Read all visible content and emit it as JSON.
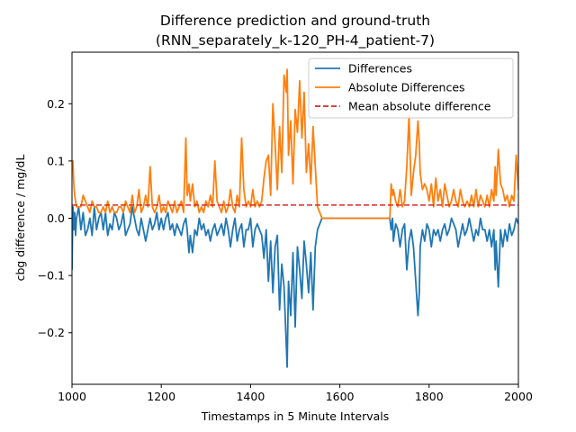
{
  "chart_data": {
    "type": "line",
    "title": "Difference prediction and ground-truth",
    "subtitle": "(RNN_separately_k-120_PH-4_patient-7)",
    "xlabel": "Timestamps in 5 Minute Intervals",
    "ylabel": "cbg difference / mg/dL",
    "xlim": [
      1000,
      2000
    ],
    "ylim": [
      -0.29,
      0.29
    ],
    "x_ticks": [
      1000,
      1200,
      1400,
      1600,
      1800,
      2000
    ],
    "x_tick_labels": [
      "1000",
      "1200",
      "1400",
      "1600",
      "1800",
      "2000"
    ],
    "y_ticks": [
      -0.2,
      -0.1,
      0.0,
      0.1,
      0.2
    ],
    "y_tick_labels": [
      "−0.2",
      "−0.1",
      "0.0",
      "0.1",
      "0.2"
    ],
    "grid": false,
    "legend_position": "upper right",
    "mean_absolute_difference": 0.023,
    "series": [
      {
        "name": "Differences",
        "color": "#1f77b4",
        "style": "solid",
        "x": [
          1000,
          1002,
          1004,
          1006,
          1008,
          1010,
          1015,
          1020,
          1025,
          1030,
          1035,
          1040,
          1045,
          1050,
          1055,
          1060,
          1065,
          1070,
          1075,
          1080,
          1085,
          1090,
          1095,
          1100,
          1105,
          1110,
          1115,
          1120,
          1125,
          1130,
          1135,
          1140,
          1145,
          1150,
          1155,
          1160,
          1165,
          1170,
          1175,
          1180,
          1185,
          1190,
          1195,
          1200,
          1205,
          1210,
          1215,
          1220,
          1225,
          1230,
          1235,
          1240,
          1245,
          1250,
          1255,
          1258,
          1262,
          1265,
          1270,
          1275,
          1280,
          1285,
          1290,
          1295,
          1300,
          1305,
          1310,
          1315,
          1320,
          1325,
          1330,
          1335,
          1340,
          1345,
          1350,
          1355,
          1360,
          1365,
          1370,
          1375,
          1380,
          1385,
          1390,
          1395,
          1400,
          1405,
          1410,
          1415,
          1420,
          1425,
          1430,
          1435,
          1440,
          1445,
          1450,
          1455,
          1460,
          1465,
          1470,
          1475,
          1480,
          1482,
          1485,
          1490,
          1495,
          1500,
          1505,
          1510,
          1515,
          1520,
          1525,
          1530,
          1535,
          1540,
          1545,
          1550,
          1560,
          1580,
          1600,
          1620,
          1640,
          1660,
          1680,
          1700,
          1712,
          1715,
          1718,
          1720,
          1725,
          1730,
          1735,
          1740,
          1745,
          1750,
          1755,
          1760,
          1765,
          1770,
          1775,
          1778,
          1780,
          1785,
          1790,
          1795,
          1800,
          1805,
          1810,
          1815,
          1820,
          1825,
          1830,
          1835,
          1840,
          1845,
          1850,
          1855,
          1860,
          1865,
          1870,
          1875,
          1880,
          1885,
          1890,
          1895,
          1900,
          1905,
          1910,
          1915,
          1920,
          1925,
          1930,
          1935,
          1940,
          1945,
          1948,
          1950,
          1955,
          1960,
          1965,
          1970,
          1975,
          1980,
          1985,
          1990,
          1995,
          2000
        ],
        "values": [
          -0.09,
          0.02,
          -0.02,
          0.01,
          -0.03,
          0.0,
          0.02,
          -0.02,
          0.01,
          -0.03,
          -0.02,
          0.0,
          -0.03,
          0.02,
          -0.02,
          0.0,
          0.01,
          -0.02,
          0.01,
          -0.03,
          -0.01,
          -0.02,
          0.01,
          0.0,
          -0.02,
          -0.01,
          0.01,
          -0.03,
          -0.02,
          -0.01,
          0.02,
          0.0,
          -0.02,
          -0.03,
          0.0,
          -0.02,
          -0.04,
          -0.02,
          0.0,
          -0.02,
          -0.01,
          0.01,
          -0.02,
          0.0,
          -0.02,
          0.0,
          0.01,
          -0.02,
          -0.01,
          -0.03,
          -0.01,
          -0.02,
          -0.03,
          -0.01,
          0.0,
          -0.02,
          -0.06,
          -0.03,
          -0.06,
          -0.02,
          -0.03,
          0.0,
          -0.02,
          -0.01,
          -0.03,
          -0.02,
          -0.04,
          -0.02,
          -0.01,
          -0.03,
          -0.02,
          -0.01,
          -0.03,
          0.0,
          -0.02,
          -0.05,
          -0.02,
          0.0,
          -0.04,
          -0.02,
          -0.01,
          -0.05,
          -0.02,
          -0.02,
          0.0,
          -0.05,
          -0.02,
          -0.01,
          -0.02,
          -0.03,
          -0.07,
          -0.02,
          -0.11,
          -0.04,
          -0.13,
          -0.05,
          -0.03,
          -0.16,
          -0.08,
          -0.12,
          -0.22,
          -0.26,
          -0.11,
          -0.17,
          -0.06,
          -0.19,
          -0.05,
          -0.09,
          -0.14,
          -0.04,
          -0.08,
          -0.13,
          -0.06,
          -0.16,
          -0.05,
          -0.02,
          0.0,
          0.0,
          0.0,
          0.0,
          0.0,
          0.0,
          0.0,
          0.0,
          0.0,
          -0.02,
          0.0,
          -0.04,
          -0.01,
          -0.02,
          -0.05,
          -0.02,
          -0.01,
          -0.09,
          -0.04,
          -0.02,
          -0.05,
          -0.11,
          -0.17,
          -0.13,
          -0.05,
          -0.02,
          -0.04,
          -0.01,
          -0.02,
          -0.05,
          -0.02,
          -0.03,
          -0.02,
          -0.04,
          -0.02,
          -0.01,
          -0.03,
          -0.02,
          0.0,
          -0.01,
          -0.02,
          -0.05,
          -0.03,
          -0.01,
          -0.03,
          -0.02,
          0.0,
          -0.02,
          -0.04,
          -0.02,
          -0.03,
          0.0,
          -0.02,
          -0.02,
          -0.04,
          -0.02,
          -0.05,
          -0.02,
          -0.09,
          -0.04,
          -0.12,
          -0.02,
          -0.05,
          -0.02,
          -0.04,
          -0.01,
          -0.03,
          -0.02,
          0.0,
          -0.01
        ]
      },
      {
        "name": "Absolute Differences",
        "color": "#ff7f0e",
        "style": "solid",
        "x": [
          1000,
          1002,
          1004,
          1006,
          1008,
          1010,
          1015,
          1020,
          1025,
          1030,
          1035,
          1040,
          1045,
          1050,
          1055,
          1060,
          1065,
          1070,
          1075,
          1080,
          1085,
          1090,
          1095,
          1100,
          1105,
          1110,
          1115,
          1120,
          1125,
          1130,
          1135,
          1140,
          1145,
          1150,
          1155,
          1160,
          1165,
          1170,
          1175,
          1180,
          1185,
          1190,
          1195,
          1200,
          1205,
          1210,
          1215,
          1220,
          1225,
          1230,
          1235,
          1240,
          1245,
          1250,
          1255,
          1258,
          1262,
          1265,
          1270,
          1275,
          1280,
          1285,
          1290,
          1295,
          1300,
          1305,
          1310,
          1315,
          1320,
          1325,
          1330,
          1335,
          1340,
          1345,
          1350,
          1355,
          1360,
          1365,
          1370,
          1375,
          1380,
          1385,
          1390,
          1395,
          1400,
          1405,
          1410,
          1415,
          1420,
          1425,
          1430,
          1435,
          1440,
          1445,
          1450,
          1455,
          1460,
          1465,
          1470,
          1475,
          1480,
          1482,
          1485,
          1490,
          1495,
          1500,
          1505,
          1510,
          1515,
          1520,
          1525,
          1530,
          1535,
          1540,
          1545,
          1550,
          1560,
          1580,
          1600,
          1620,
          1640,
          1660,
          1680,
          1700,
          1712,
          1715,
          1718,
          1720,
          1725,
          1730,
          1735,
          1740,
          1745,
          1750,
          1755,
          1760,
          1765,
          1770,
          1775,
          1778,
          1780,
          1785,
          1790,
          1795,
          1800,
          1805,
          1810,
          1815,
          1820,
          1825,
          1830,
          1835,
          1840,
          1845,
          1850,
          1855,
          1860,
          1865,
          1870,
          1875,
          1880,
          1885,
          1890,
          1895,
          1900,
          1905,
          1910,
          1915,
          1920,
          1925,
          1930,
          1935,
          1940,
          1945,
          1948,
          1950,
          1955,
          1960,
          1965,
          1970,
          1975,
          1980,
          1985,
          1990,
          1995,
          2000
        ],
        "values": [
          0.09,
          0.1,
          0.06,
          0.04,
          0.03,
          0.02,
          0.02,
          0.02,
          0.04,
          0.03,
          0.02,
          0.01,
          0.03,
          0.02,
          0.02,
          0.01,
          0.01,
          0.02,
          0.01,
          0.03,
          0.01,
          0.02,
          0.01,
          0.01,
          0.02,
          0.02,
          0.01,
          0.03,
          0.02,
          0.01,
          0.04,
          0.01,
          0.02,
          0.05,
          0.01,
          0.02,
          0.04,
          0.02,
          0.09,
          0.02,
          0.01,
          0.02,
          0.04,
          0.01,
          0.02,
          0.01,
          0.03,
          0.02,
          0.01,
          0.03,
          0.01,
          0.02,
          0.03,
          0.01,
          0.14,
          0.04,
          0.06,
          0.03,
          0.06,
          0.02,
          0.03,
          0.01,
          0.02,
          0.01,
          0.03,
          0.02,
          0.04,
          0.02,
          0.1,
          0.03,
          0.02,
          0.01,
          0.03,
          0.01,
          0.02,
          0.05,
          0.02,
          0.01,
          0.04,
          0.02,
          0.14,
          0.05,
          0.02,
          0.03,
          0.02,
          0.05,
          0.02,
          0.03,
          0.02,
          0.03,
          0.07,
          0.1,
          0.11,
          0.04,
          0.2,
          0.13,
          0.05,
          0.16,
          0.08,
          0.25,
          0.22,
          0.26,
          0.11,
          0.17,
          0.06,
          0.19,
          0.15,
          0.24,
          0.14,
          0.22,
          0.08,
          0.13,
          0.06,
          0.16,
          0.09,
          0.02,
          0.0,
          0.0,
          0.0,
          0.0,
          0.0,
          0.0,
          0.0,
          0.0,
          0.0,
          0.06,
          0.04,
          0.05,
          0.03,
          0.02,
          0.05,
          0.02,
          0.03,
          0.09,
          0.18,
          0.04,
          0.08,
          0.11,
          0.17,
          0.13,
          0.08,
          0.05,
          0.06,
          0.05,
          0.03,
          0.06,
          0.02,
          0.07,
          0.03,
          0.05,
          0.02,
          0.06,
          0.04,
          0.02,
          0.03,
          0.05,
          0.03,
          0.02,
          0.05,
          0.03,
          0.02,
          0.03,
          0.02,
          0.04,
          0.02,
          0.05,
          0.02,
          0.04,
          0.03,
          0.02,
          0.04,
          0.02,
          0.05,
          0.03,
          0.09,
          0.04,
          0.12,
          0.06,
          0.05,
          0.03,
          0.04,
          0.02,
          0.04,
          0.03,
          0.11,
          0.05
        ]
      },
      {
        "name": "Mean absolute difference",
        "color": "#d62728",
        "style": "dashed",
        "x": [
          1000,
          2000
        ],
        "values": [
          0.023,
          0.023
        ]
      }
    ]
  }
}
